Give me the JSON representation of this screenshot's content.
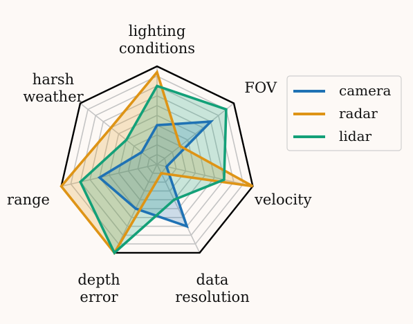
{
  "chart_data": {
    "type": "radar",
    "axes": [
      {
        "key": "lighting",
        "lines": [
          "lighting",
          "conditions"
        ]
      },
      {
        "key": "fov",
        "lines": [
          "FOV"
        ]
      },
      {
        "key": "velocity",
        "lines": [
          "velocity"
        ]
      },
      {
        "key": "data_resolution",
        "lines": [
          "data",
          "resolution"
        ]
      },
      {
        "key": "depth_error",
        "lines": [
          "depth",
          "error"
        ]
      },
      {
        "key": "range",
        "lines": [
          "range"
        ]
      },
      {
        "key": "harsh_weather",
        "lines": [
          "harsh",
          "weather"
        ]
      }
    ],
    "rmax": 5,
    "rings": [
      1,
      2,
      3,
      4,
      5
    ],
    "legend_position": "right",
    "series": [
      {
        "name": "camera",
        "color": "#1f72b4",
        "values": [
          2,
          3.5,
          0.5,
          3.5,
          2.5,
          3,
          1
        ]
      },
      {
        "name": "radar",
        "color": "#de9416",
        "values": [
          4.7,
          1.5,
          5,
          0.5,
          5,
          5,
          3
        ]
      },
      {
        "name": "lidar",
        "color": "#13a078",
        "values": [
          4,
          4.5,
          3.5,
          2,
          5,
          4,
          2
        ]
      }
    ]
  }
}
